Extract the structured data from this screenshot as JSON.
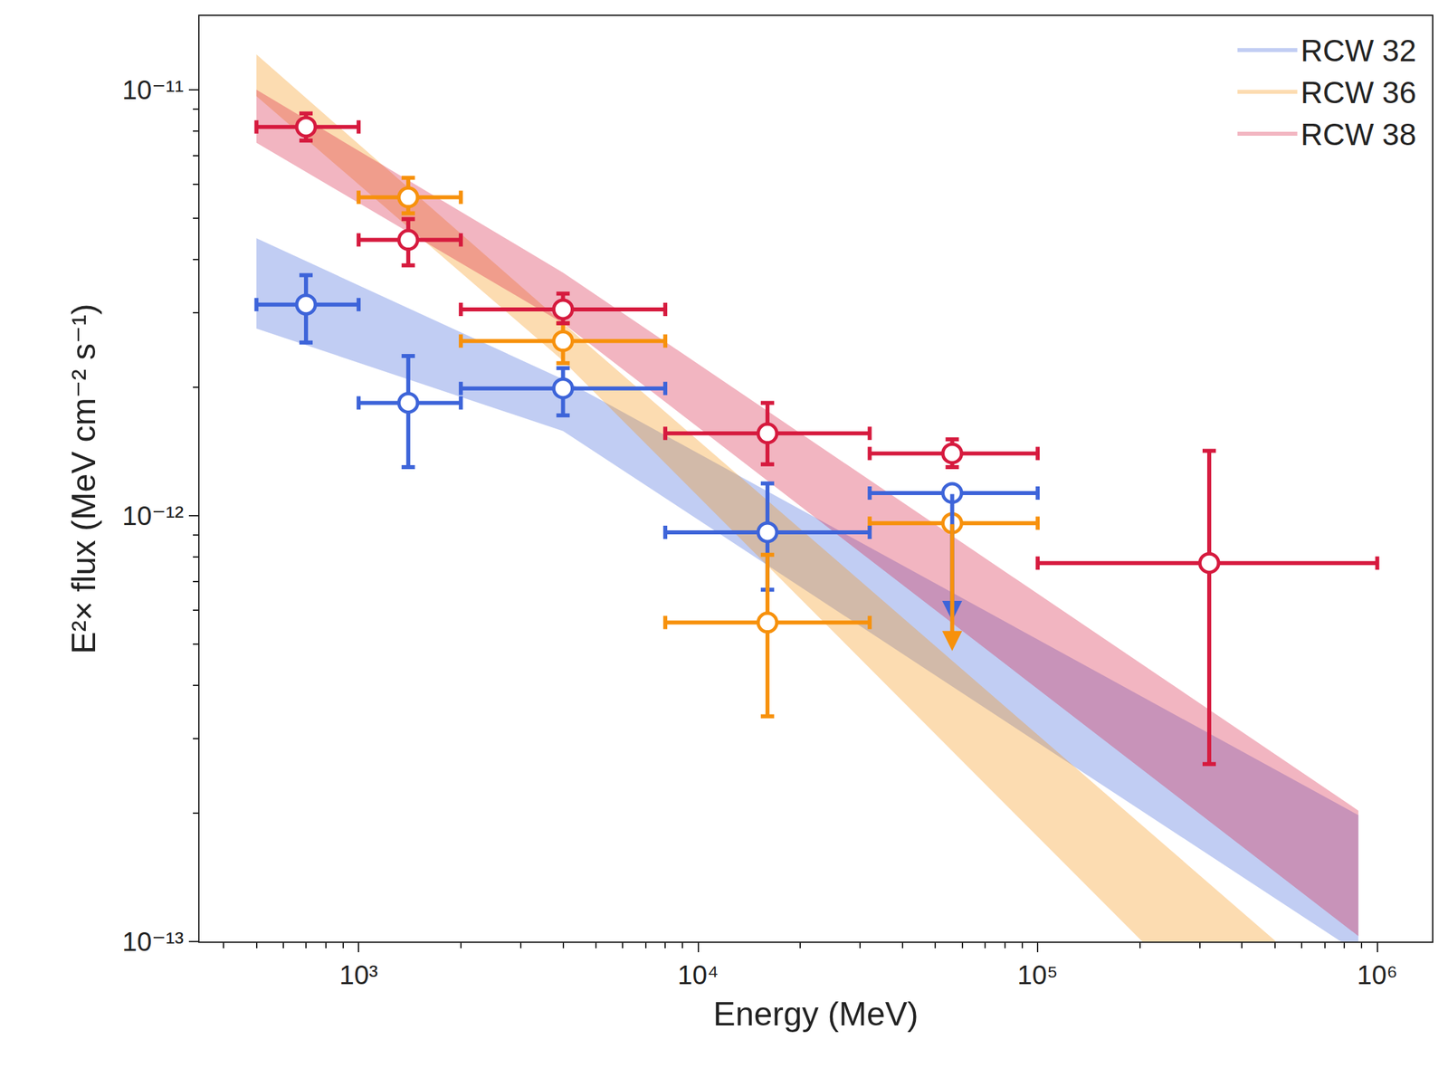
{
  "chart_data": {
    "type": "scatter",
    "x_label": "Energy (MeV)",
    "y_label": "E²× flux (MeV cm⁻² s⁻¹)",
    "log": true,
    "grid": false,
    "legend": "top-right",
    "xlim": [
      340,
      1450000
    ],
    "ylim": [
      1e-13,
      1.49e-11
    ],
    "xticks": [
      {
        "value": 1000,
        "label": "10³"
      },
      {
        "value": 10000,
        "label": "10⁴"
      },
      {
        "value": 100000,
        "label": "10⁵"
      },
      {
        "value": 1000000,
        "label": "10⁶"
      }
    ],
    "yticks": [
      {
        "value": 1e-13,
        "label": "10⁻¹³"
      },
      {
        "value": 1e-12,
        "label": "10⁻¹²"
      },
      {
        "value": 1e-11,
        "label": "10⁻¹¹"
      }
    ],
    "series": [
      {
        "name": "RCW 32",
        "color": "#3d64d9",
        "marker": "open-circle",
        "x": [
          700,
          1400,
          4000,
          16000
        ],
        "x_bins": [
          [
            500,
            1000
          ],
          [
            1000,
            2000
          ],
          [
            2000,
            8000
          ],
          [
            8000,
            32000
          ]
        ],
        "values": [
          3.13e-12,
          1.84e-12,
          1.99e-12,
          9.14e-13
        ],
        "y_range": [
          [
            2.55e-12,
            3.67e-12
          ],
          [
            1.3e-12,
            2.37e-12
          ],
          [
            1.72e-12,
            2.22e-12
          ],
          [
            6.7e-13,
            1.19e-12
          ]
        ],
        "upper_limits": {
          "x": [
            56000
          ],
          "x_bins": [
            [
              32000,
              100000
            ]
          ],
          "values": [
            1.13e-12
          ]
        },
        "band": {
          "x": [
            500,
            4000,
            880000
          ],
          "upper": [
            4.48e-12,
            2.09e-12,
            1.98e-13
          ],
          "lower": [
            2.75e-12,
            1.58e-12,
            9.4e-14
          ]
        }
      },
      {
        "name": "RCW 36",
        "color": "#f7910c",
        "marker": "open-circle",
        "x": [
          1400,
          4000,
          16000
        ],
        "x_bins": [
          [
            1000,
            2000
          ],
          [
            2000,
            8000
          ],
          [
            8000,
            32000
          ]
        ],
        "values": [
          5.59e-12,
          2.57e-12,
          5.61e-13
        ],
        "y_range": [
          [
            5.13e-12,
            6.21e-12
          ],
          [
            2.28e-12,
            2.83e-12
          ],
          [
            3.38e-13,
            8.09e-13
          ]
        ],
        "upper_limits": {
          "x": [
            56000
          ],
          "x_bins": [
            [
              32000,
              100000
            ]
          ],
          "values": [
            9.6e-13
          ]
        },
        "band": {
          "x": [
            500,
            4000,
            880000
          ],
          "upper": [
            1.21e-11,
            2.83e-12,
            6.8e-14
          ],
          "lower": [
            9.66e-12,
            2.31e-12,
            3.1e-14
          ]
        }
      },
      {
        "name": "RCW 38",
        "color": "#d61a3e",
        "marker": "open-circle",
        "x": [
          700,
          1400,
          4000,
          16000,
          56000,
          320000
        ],
        "x_bins": [
          [
            500,
            1000
          ],
          [
            1000,
            2000
          ],
          [
            2000,
            8000
          ],
          [
            8000,
            32000
          ],
          [
            32000,
            100000
          ],
          [
            100000,
            1000000
          ]
        ],
        "values": [
          8.18e-12,
          4.44e-12,
          3.05e-12,
          1.56e-12,
          1.4e-12,
          7.74e-13
        ],
        "y_range": [
          [
            7.6e-12,
            8.8e-12
          ],
          [
            3.87e-12,
            4.97e-12
          ],
          [
            2.83e-12,
            3.32e-12
          ],
          [
            1.32e-12,
            1.84e-12
          ],
          [
            1.3e-12,
            1.51e-12
          ],
          [
            2.61e-13,
            1.42e-12
          ]
        ],
        "band": {
          "x": [
            500,
            4000,
            880000
          ],
          "upper": [
            1e-11,
            3.72e-12,
            2.03e-13
          ],
          "lower": [
            7.51e-12,
            2.83e-12,
            1.03e-13
          ]
        }
      }
    ]
  }
}
